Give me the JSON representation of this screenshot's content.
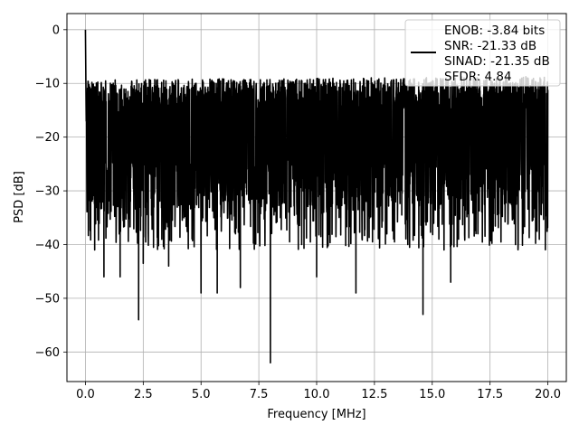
{
  "chart_data": {
    "type": "line",
    "xlabel": "Frequency [MHz]",
    "ylabel": "PSD [dB]",
    "xlim": [
      -0.8,
      20.8
    ],
    "ylim": [
      -65.5,
      3
    ],
    "xticks": [
      0.0,
      2.5,
      5.0,
      7.5,
      10.0,
      12.5,
      15.0,
      17.5,
      20.0
    ],
    "xtick_labels": [
      "0.0",
      "2.5",
      "5.0",
      "7.5",
      "10.0",
      "12.5",
      "15.0",
      "17.5",
      "20.0"
    ],
    "yticks": [
      0,
      -10,
      -20,
      -30,
      -40,
      -50,
      -60
    ],
    "ytick_labels": [
      "0",
      "−10",
      "−20",
      "−30",
      "−40",
      "−50",
      "−60"
    ],
    "grid": true,
    "legend_position": "top-right",
    "line_color": "#000000",
    "series": [
      {
        "legend_lines": [
          "ENOB: -3.84 bits",
          "SNR: -21.33 dB",
          "SINAD: -21.35 dB",
          "SFDR: 4.84"
        ],
        "peak": [
          0.0,
          0.0
        ],
        "notable_minima": [
          [
            0.4,
            -41
          ],
          [
            0.8,
            -46
          ],
          [
            1.5,
            -46
          ],
          [
            2.3,
            -54
          ],
          [
            2.5,
            -43.5
          ],
          [
            3.6,
            -44
          ],
          [
            5.0,
            -49
          ],
          [
            5.7,
            -49
          ],
          [
            6.7,
            -48
          ],
          [
            8.0,
            -62
          ],
          [
            10.0,
            -46
          ],
          [
            11.7,
            -49
          ],
          [
            14.6,
            -53
          ],
          [
            15.8,
            -47
          ],
          [
            18.6,
            -40
          ]
        ],
        "noise_band_db": [
          -30,
          -12
        ],
        "freq_range_mhz": [
          0.0,
          20.0
        ]
      }
    ]
  }
}
